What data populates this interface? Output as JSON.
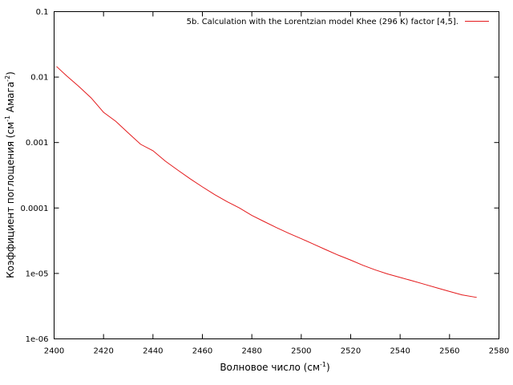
{
  "chart_data": {
    "type": "line",
    "title": "",
    "xlabel": "Волновое число (см",
    "xlabel_sup": "-1",
    "xlabel_close": ")",
    "ylabel_parts": [
      {
        "text": "Коэффициент поглощения (см",
        "sup": false
      },
      {
        "text": "-1",
        "sup": true
      },
      {
        "text": " Амага",
        "sup": false
      },
      {
        "text": "-2",
        "sup": true
      },
      {
        "text": ")",
        "sup": false
      }
    ],
    "xlim": [
      2400,
      2580
    ],
    "ylim": [
      1e-06,
      0.1
    ],
    "yscale": "log",
    "grid": false,
    "legend_position": "top-right",
    "x_ticks": [
      2400,
      2420,
      2440,
      2460,
      2480,
      2500,
      2520,
      2540,
      2560,
      2580
    ],
    "x_tick_labels": [
      "2400",
      "2420",
      "2440",
      "2460",
      "2480",
      "2500",
      "2520",
      "2540",
      "2560",
      "2580"
    ],
    "y_ticks": [
      0.1,
      0.01,
      0.001,
      0.0001,
      1e-05,
      1e-06
    ],
    "y_tick_labels": [
      "0.1",
      "0.01",
      "0.001",
      "0.0001",
      "1e-05",
      "1e-06"
    ],
    "series": [
      {
        "name": "5b. Calculation with the Lorentzian model Khee (296 K) factor [4,5].",
        "color": "#e41a1c",
        "x": [
          2401,
          2405,
          2410,
          2415,
          2420,
          2425,
          2430,
          2435,
          2440,
          2445,
          2450,
          2455,
          2460,
          2465,
          2470,
          2475,
          2480,
          2485,
          2490,
          2495,
          2500,
          2505,
          2510,
          2515,
          2520,
          2525,
          2530,
          2535,
          2540,
          2545,
          2550,
          2555,
          2560,
          2565,
          2571
        ],
        "y": [
          0.0145,
          0.0105,
          0.0072,
          0.0048,
          0.0029,
          0.0021,
          0.0014,
          0.00094,
          0.00075,
          0.00052,
          0.00038,
          0.00028,
          0.00021,
          0.00016,
          0.000125,
          0.0001,
          7.7e-05,
          6.2e-05,
          5e-05,
          4.1e-05,
          3.4e-05,
          2.8e-05,
          2.3e-05,
          1.9e-05,
          1.6e-05,
          1.33e-05,
          1.13e-05,
          9.8e-06,
          8.7e-06,
          7.7e-06,
          6.8e-06,
          6e-06,
          5.3e-06,
          4.7e-06,
          4.3e-06
        ]
      }
    ]
  }
}
